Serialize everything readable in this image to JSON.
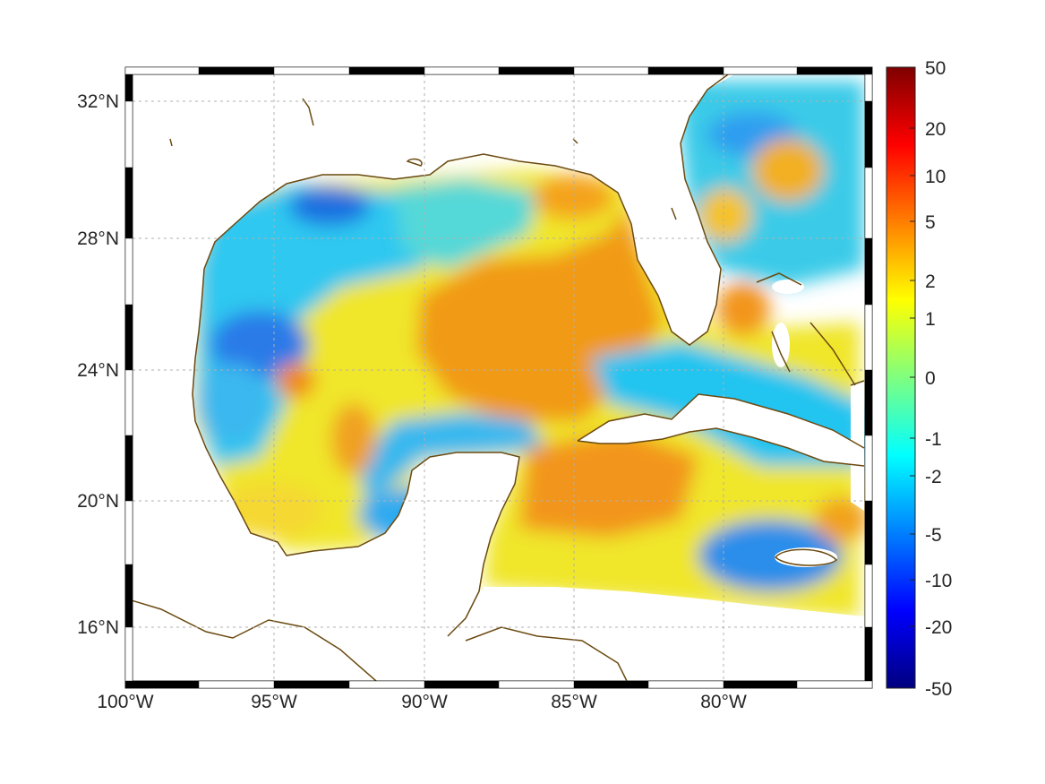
{
  "map": {
    "lon_ticks": [
      "100°W",
      "95°W",
      "90°W",
      "85°W",
      "80°W"
    ],
    "lat_ticks": [
      "32°N",
      "28°N",
      "24°N",
      "20°N",
      "16°N"
    ],
    "extent": {
      "lon": [
        -100,
        -75
      ],
      "lat": [
        14.3,
        32.9
      ]
    },
    "grid": "dotted",
    "frame": "black-white alternating",
    "coastline_color": "#6b4a10",
    "land_color": "#ffffff"
  },
  "colorbar": {
    "tick_labels": [
      "50",
      "20",
      "10",
      "5",
      "2",
      "1",
      "0",
      "-1",
      "-2",
      "-5",
      "-10",
      "-20",
      "-50"
    ],
    "colormap": "jet",
    "colors": [
      "#7f0000",
      "#ff0000",
      "#ff7f00",
      "#ffff00",
      "#7fff7f",
      "#00ffff",
      "#007fff",
      "#0000ff",
      "#00007f"
    ]
  }
}
